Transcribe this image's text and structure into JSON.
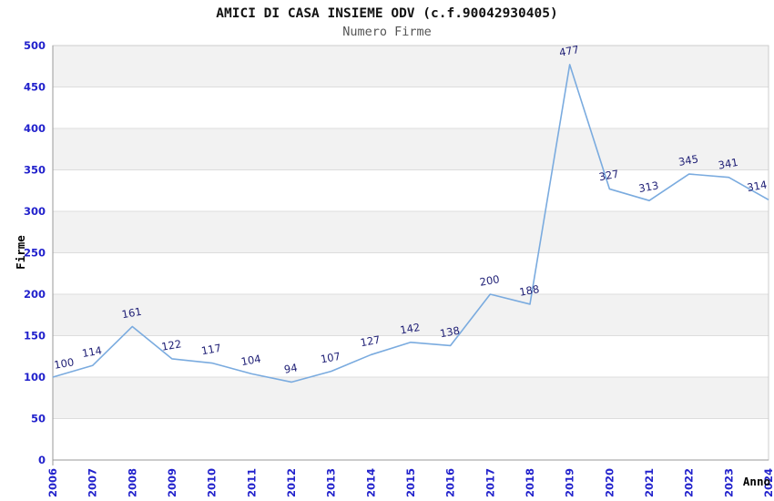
{
  "chart_data": {
    "type": "line",
    "title": "AMICI DI CASA INSIEME ODV (c.f.90042930405)",
    "subtitle": "Numero Firme",
    "xlabel": "Anno",
    "ylabel": "Firme",
    "categories": [
      "2006",
      "2007",
      "2008",
      "2009",
      "2010",
      "2011",
      "2012",
      "2013",
      "2014",
      "2015",
      "2016",
      "2017",
      "2018",
      "2019",
      "2020",
      "2021",
      "2022",
      "2023",
      "2024"
    ],
    "series": [
      {
        "name": "Numero Firme",
        "values": [
          100,
          114,
          161,
          122,
          117,
          104,
          94,
          107,
          127,
          142,
          138,
          200,
          188,
          477,
          327,
          313,
          345,
          341,
          314
        ]
      }
    ],
    "ylim": [
      0,
      500
    ],
    "ytick_step": 50,
    "grid": "horizontal",
    "band_fill": "alternating",
    "legend_position": "none",
    "point_labels_visible": true,
    "colors": {
      "line": "#7aabdf",
      "point_label": "#222277",
      "tick_label": "#2222cc",
      "band": "#f2f2f2",
      "gridline": "#dddddd",
      "plot_border": "#cccccc",
      "axis_line": "#999999",
      "title": "#111111",
      "subtitle": "#555555",
      "axis_title": "#000000",
      "background": "#ffffff"
    }
  }
}
